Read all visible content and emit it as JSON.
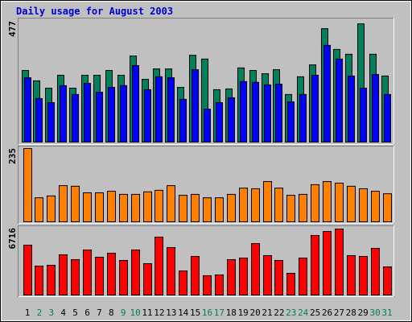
{
  "title": "Daily usage for August 2003",
  "chart_data": [
    {
      "type": "grouped-bar",
      "ylim": [
        0,
        477
      ],
      "yticks": [
        477
      ],
      "series": [
        {
          "color": "#00805c",
          "values": [
            283,
            242,
            213,
            264,
            213,
            264,
            264,
            283,
            264,
            340,
            248,
            289,
            289,
            216,
            343,
            328,
            207,
            210,
            293,
            283,
            270,
            286,
            188,
            258,
            305,
            448,
            366,
            347,
            467,
            347,
            261
          ]
        },
        {
          "color": "#0000ff",
          "values": [
            254,
            172,
            156,
            223,
            188,
            232,
            197,
            216,
            223,
            302,
            207,
            258,
            254,
            169,
            286,
            130,
            156,
            175,
            239,
            236,
            226,
            229,
            159,
            188,
            264,
            382,
            328,
            261,
            213,
            267,
            188
          ]
        }
      ]
    },
    {
      "type": "bar",
      "ylim": [
        0,
        235
      ],
      "yticks": [
        235
      ],
      "color": "#ff8000",
      "values": [
        235,
        77,
        83,
        116,
        114,
        93,
        93,
        98,
        88,
        88,
        96,
        101,
        116,
        85,
        88,
        77,
        77,
        88,
        108,
        106,
        129,
        108,
        85,
        88,
        119,
        129,
        124,
        114,
        106,
        98,
        90
      ]
    },
    {
      "type": "bar",
      "ylim": [
        0,
        6716
      ],
      "yticks": [
        6716
      ],
      "color": "#ff0000",
      "values": [
        5017,
        2913,
        2994,
        4046,
        3560,
        4531,
        3803,
        4208,
        3479,
        4531,
        3156,
        5826,
        4774,
        2427,
        3884,
        1942,
        2023,
        3560,
        3722,
        5179,
        3965,
        3479,
        2185,
        3722,
        5988,
        6392,
        6635,
        3965,
        3884,
        4693,
        2832
      ],
      "categories": [
        "1",
        "2",
        "3",
        "4",
        "5",
        "6",
        "7",
        "8",
        "9",
        "10",
        "11",
        "12",
        "13",
        "14",
        "15",
        "16",
        "17",
        "18",
        "19",
        "20",
        "21",
        "22",
        "23",
        "24",
        "25",
        "26",
        "27",
        "28",
        "29",
        "30",
        "31"
      ],
      "category_colors": [
        "#000000",
        "#00805c",
        "#00805c",
        "#000000",
        "#000000",
        "#000000",
        "#000000",
        "#000000",
        "#00805c",
        "#00805c",
        "#000000",
        "#000000",
        "#000000",
        "#000000",
        "#000000",
        "#00805c",
        "#00805c",
        "#000000",
        "#000000",
        "#000000",
        "#000000",
        "#000000",
        "#00805c",
        "#00805c",
        "#000000",
        "#000000",
        "#000000",
        "#000000",
        "#000000",
        "#00805c",
        "#00805c"
      ]
    }
  ]
}
